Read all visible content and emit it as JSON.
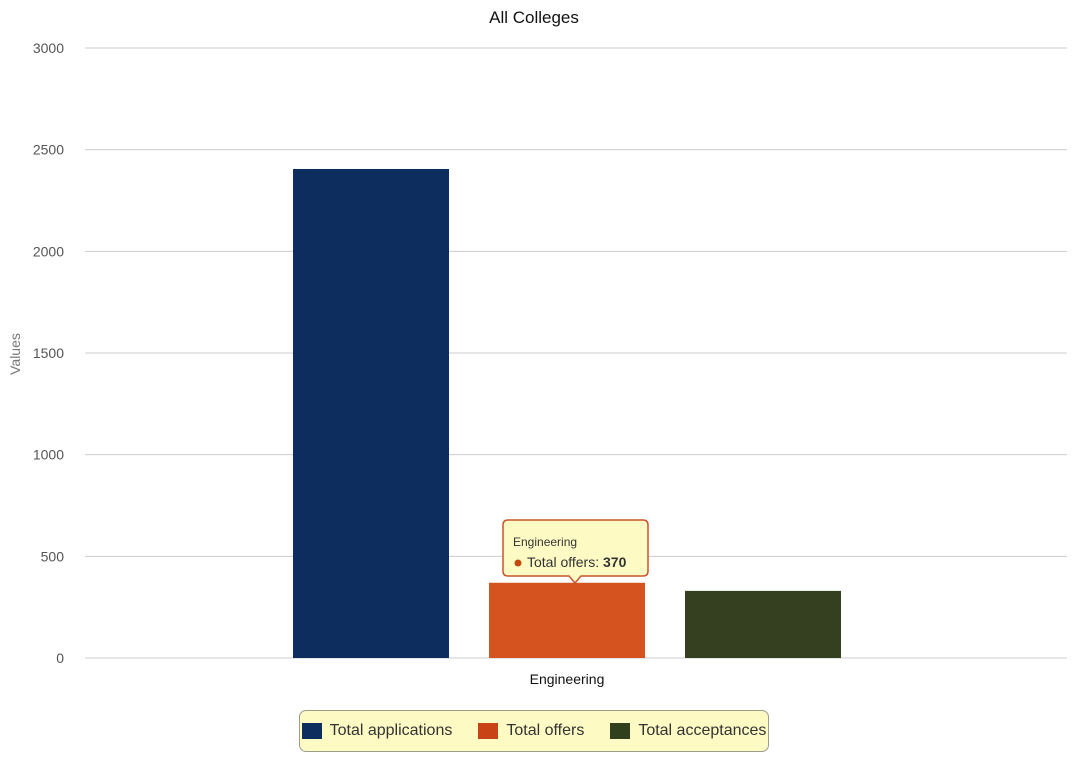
{
  "chart_data": {
    "type": "bar",
    "title": "All Colleges",
    "xlabel": "",
    "ylabel": "Values",
    "categories": [
      "Engineering"
    ],
    "ylim": [
      0,
      3000
    ],
    "yticks": [
      0,
      500,
      1000,
      1500,
      2000,
      2500,
      3000
    ],
    "grid": true,
    "legend_position": "bottom-center",
    "series": [
      {
        "name": "Total applications",
        "values": [
          2405
        ],
        "color": "#0d2d5e"
      },
      {
        "name": "Total offers",
        "values": [
          370
        ],
        "color": "#d5531f"
      },
      {
        "name": "Total acceptances",
        "values": [
          330
        ],
        "color": "#34401f"
      }
    ]
  },
  "tooltip": {
    "category": "Engineering",
    "series_label": "Total offers",
    "value": "370",
    "bullet_color": "#c04a10"
  },
  "colors": {
    "legend_applications": "#0d2d5e",
    "legend_offers": "#c84316",
    "legend_acceptances": "#31401c"
  }
}
